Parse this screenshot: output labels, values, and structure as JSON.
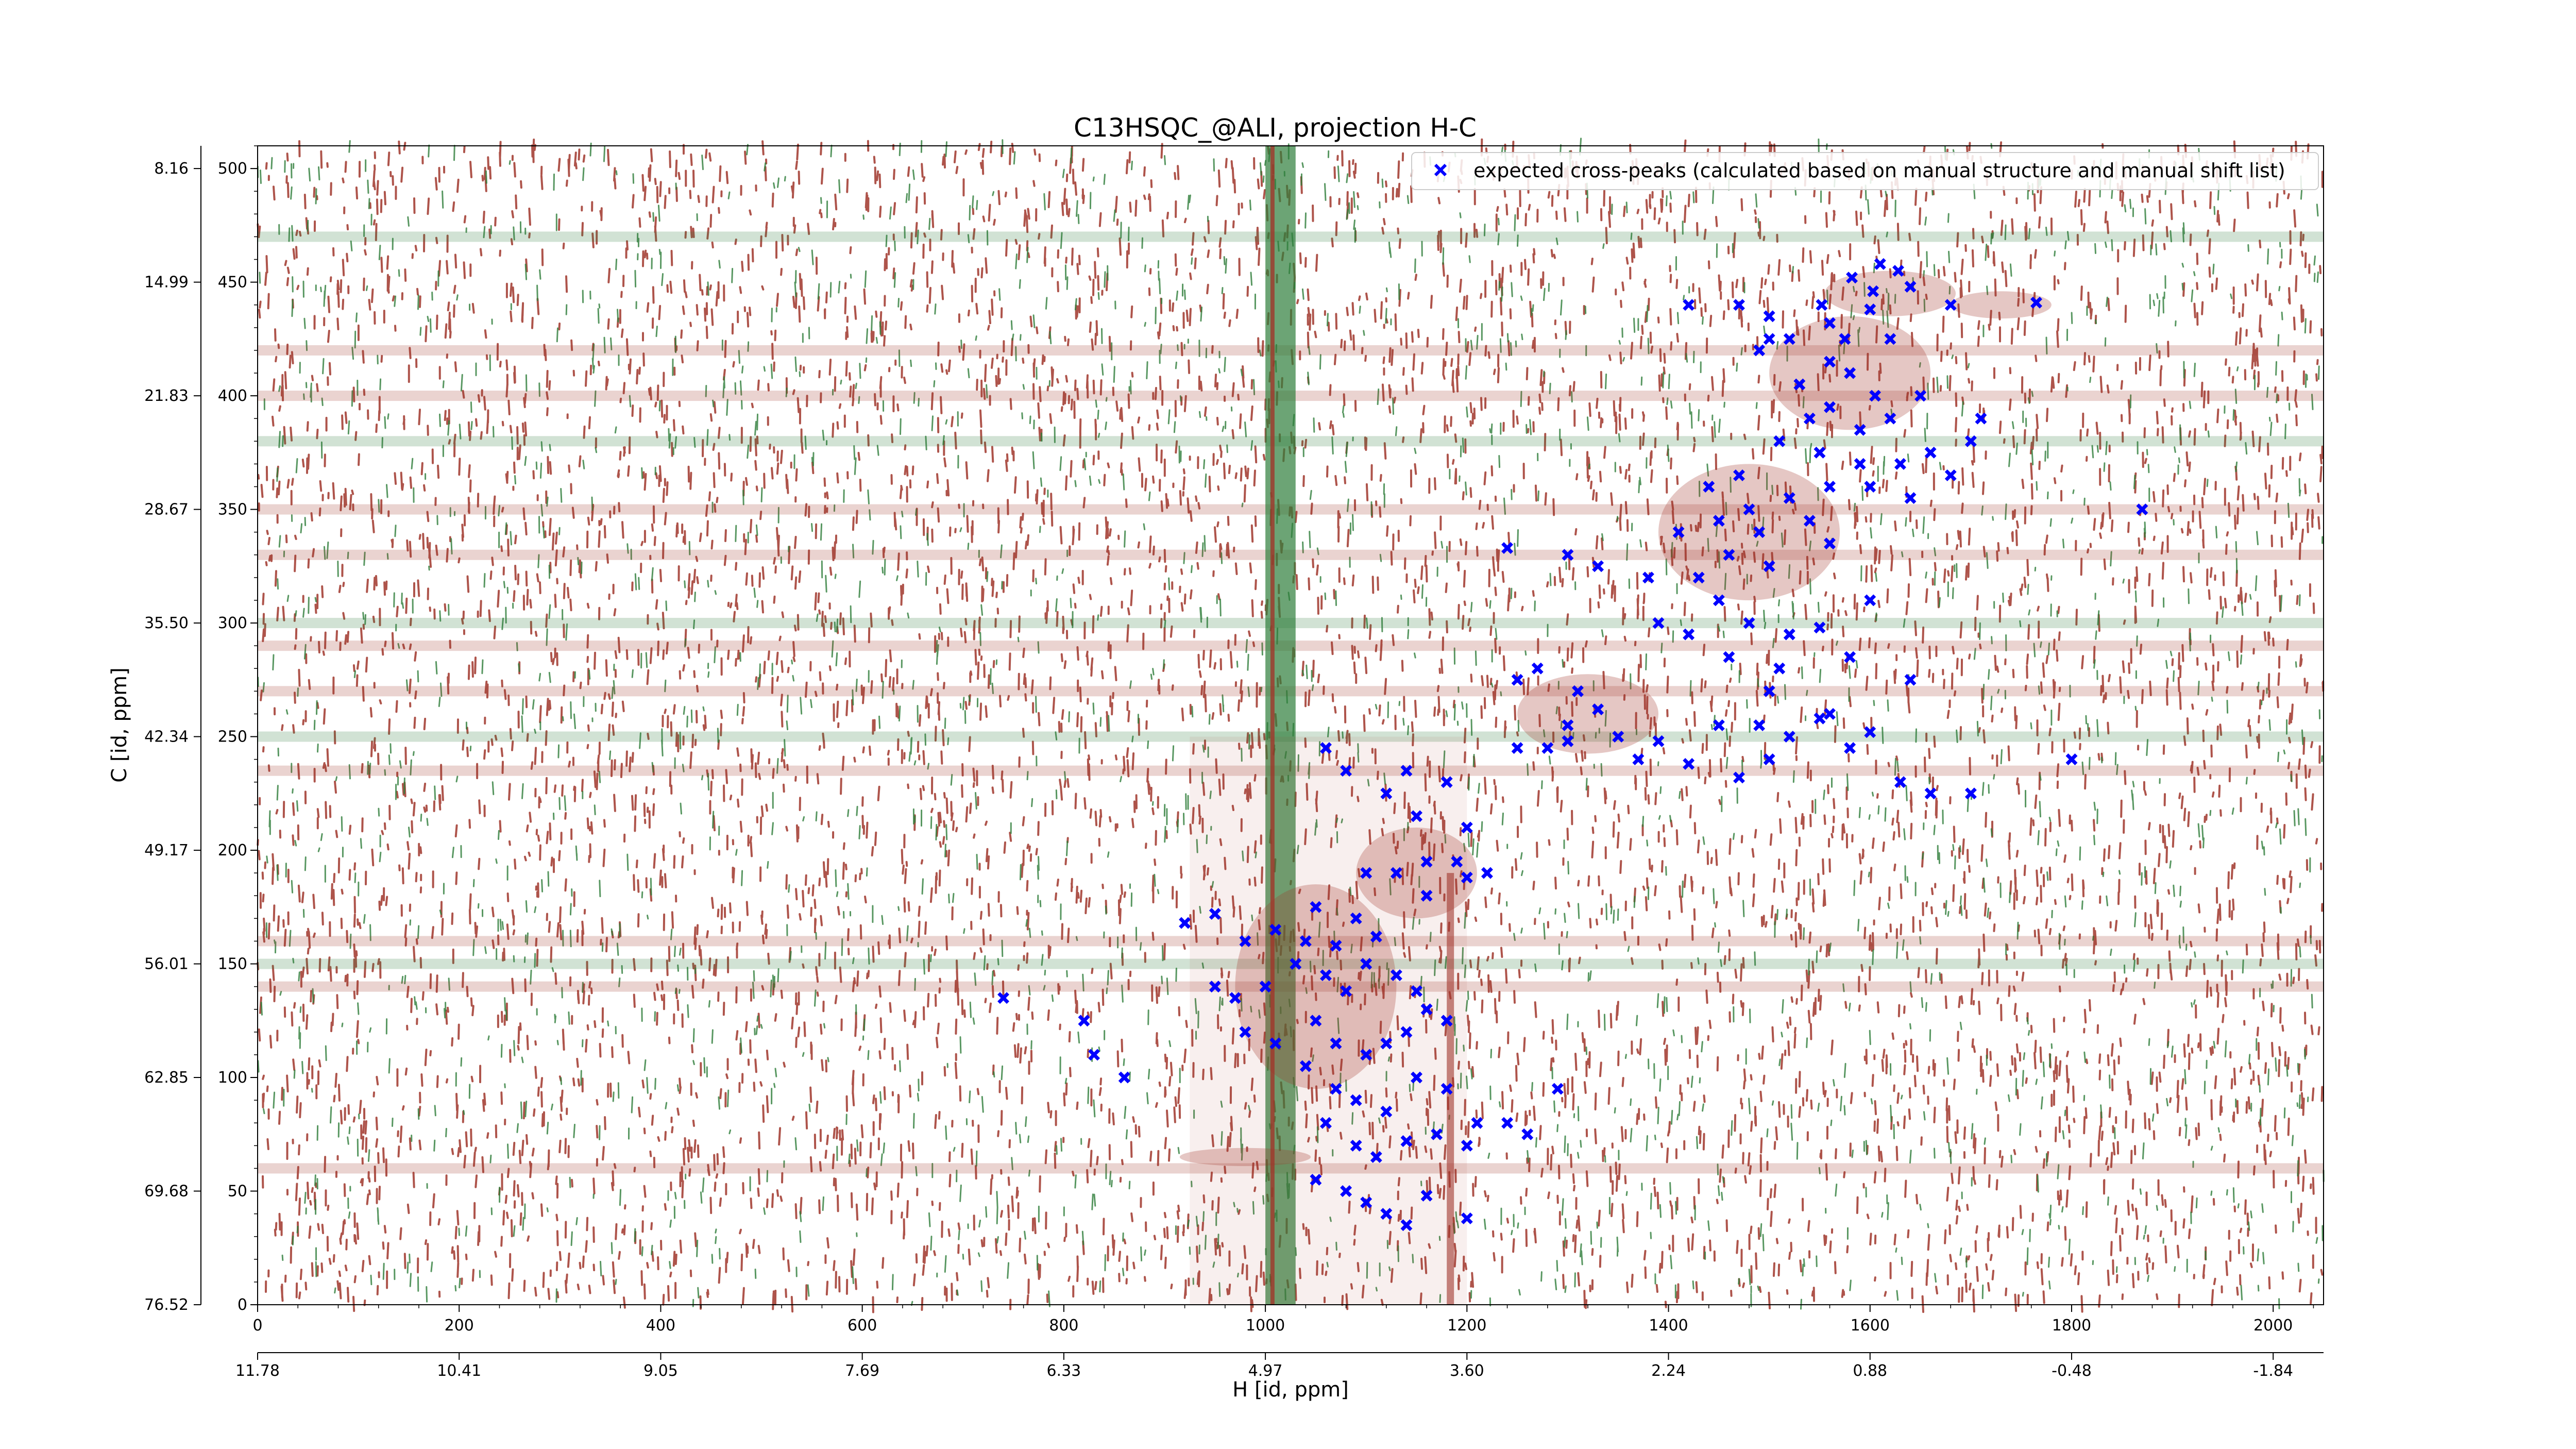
{
  "chart_data": {
    "type": "scatter",
    "title": "C13HSQC_@ALI, projection H-C",
    "xlabel": "H [id, ppm]",
    "ylabel": "C [id, ppm]",
    "xlim": [
      0,
      2050
    ],
    "ylim": [
      0,
      510
    ],
    "x_ticks": [
      0,
      200,
      400,
      600,
      800,
      1000,
      1200,
      1400,
      1600,
      1800,
      2000
    ],
    "y_ticks": [
      0,
      50,
      100,
      150,
      200,
      250,
      300,
      350,
      400,
      450,
      500
    ],
    "x_ppm_ticks": [
      "11.78",
      "10.41",
      "9.05",
      "7.69",
      "6.33",
      "4.97",
      "3.60",
      "2.24",
      "0.88",
      "-0.48",
      "-1.84"
    ],
    "y_ppm_ticks": [
      "76.52",
      "69.68",
      "62.85",
      "56.01",
      "49.17",
      "42.34",
      "35.50",
      "28.67",
      "21.83",
      "14.99",
      "8.16"
    ],
    "grid": false,
    "legend_position": "top-right",
    "colors": {
      "positive_contour": "#a0362b",
      "negative_contour": "#2e7d3a",
      "marker": "#0000ff"
    },
    "series": [
      {
        "name": "expected cross-peaks (calculated based on manual structure and manual shift list)",
        "marker": "x",
        "points": [
          [
            1610,
            458
          ],
          [
            1628,
            455
          ],
          [
            1582,
            452
          ],
          [
            1603,
            446
          ],
          [
            1640,
            448
          ],
          [
            1552,
            440
          ],
          [
            1470,
            440
          ],
          [
            1420,
            440
          ],
          [
            1500,
            435
          ],
          [
            1560,
            432
          ],
          [
            1600,
            438
          ],
          [
            1765,
            441
          ],
          [
            1680,
            440
          ],
          [
            1575,
            425
          ],
          [
            1620,
            425
          ],
          [
            1520,
            425
          ],
          [
            1490,
            420
          ],
          [
            1560,
            415
          ],
          [
            1580,
            410
          ],
          [
            1530,
            405
          ],
          [
            1605,
            400
          ],
          [
            1650,
            400
          ],
          [
            1560,
            395
          ],
          [
            1540,
            390
          ],
          [
            1590,
            385
          ],
          [
            1620,
            390
          ],
          [
            1710,
            390
          ],
          [
            1700,
            380
          ],
          [
            1510,
            380
          ],
          [
            1550,
            375
          ],
          [
            1590,
            370
          ],
          [
            1630,
            370
          ],
          [
            1660,
            375
          ],
          [
            1680,
            365
          ],
          [
            1560,
            360
          ],
          [
            1600,
            360
          ],
          [
            1640,
            355
          ],
          [
            1470,
            365
          ],
          [
            1440,
            360
          ],
          [
            1480,
            350
          ],
          [
            1520,
            355
          ],
          [
            1450,
            345
          ],
          [
            1410,
            340
          ],
          [
            1490,
            340
          ],
          [
            1540,
            345
          ],
          [
            1560,
            335
          ],
          [
            1460,
            330
          ],
          [
            1500,
            325
          ],
          [
            1430,
            320
          ],
          [
            1380,
            320
          ],
          [
            1330,
            325
          ],
          [
            1300,
            330
          ],
          [
            1240,
            333
          ],
          [
            1450,
            310
          ],
          [
            1480,
            300
          ],
          [
            1520,
            295
          ],
          [
            1550,
            298
          ],
          [
            1600,
            310
          ],
          [
            1420,
            295
          ],
          [
            1390,
            300
          ],
          [
            1460,
            285
          ],
          [
            1510,
            280
          ],
          [
            1580,
            285
          ],
          [
            1500,
            270
          ],
          [
            1640,
            275
          ],
          [
            1250,
            275
          ],
          [
            1270,
            280
          ],
          [
            1310,
            270
          ],
          [
            1330,
            262
          ],
          [
            1300,
            255
          ],
          [
            1350,
            250
          ],
          [
            1280,
            245
          ],
          [
            1250,
            245
          ],
          [
            1390,
            248
          ],
          [
            1450,
            255
          ],
          [
            1490,
            255
          ],
          [
            1520,
            250
          ],
          [
            1550,
            258
          ],
          [
            1600,
            252
          ],
          [
            1580,
            245
          ],
          [
            1500,
            240
          ],
          [
            1470,
            232
          ],
          [
            1420,
            238
          ],
          [
            1370,
            240
          ],
          [
            1300,
            248
          ],
          [
            1060,
            245
          ],
          [
            1080,
            235
          ],
          [
            1140,
            235
          ],
          [
            1180,
            230
          ],
          [
            1120,
            225
          ],
          [
            1150,
            215
          ],
          [
            1200,
            210
          ],
          [
            1190,
            195
          ],
          [
            1160,
            195
          ],
          [
            1130,
            190
          ],
          [
            1100,
            190
          ],
          [
            1160,
            180
          ],
          [
            1200,
            188
          ],
          [
            1220,
            190
          ],
          [
            1050,
            175
          ],
          [
            1090,
            170
          ],
          [
            1110,
            162
          ],
          [
            1070,
            158
          ],
          [
            1040,
            160
          ],
          [
            1010,
            165
          ],
          [
            950,
            172
          ],
          [
            920,
            168
          ],
          [
            980,
            160
          ],
          [
            1030,
            150
          ],
          [
            1060,
            145
          ],
          [
            1080,
            138
          ],
          [
            1100,
            150
          ],
          [
            1130,
            145
          ],
          [
            1150,
            138
          ],
          [
            1000,
            140
          ],
          [
            970,
            135
          ],
          [
            950,
            140
          ],
          [
            1050,
            125
          ],
          [
            1070,
            115
          ],
          [
            1100,
            110
          ],
          [
            1120,
            115
          ],
          [
            1140,
            120
          ],
          [
            1160,
            130
          ],
          [
            1180,
            125
          ],
          [
            980,
            120
          ],
          [
            1010,
            115
          ],
          [
            1040,
            105
          ],
          [
            1070,
            95
          ],
          [
            1090,
            90
          ],
          [
            1120,
            85
          ],
          [
            1150,
            100
          ],
          [
            1180,
            95
          ],
          [
            1210,
            80
          ],
          [
            1240,
            80
          ],
          [
            1060,
            80
          ],
          [
            1090,
            70
          ],
          [
            1110,
            65
          ],
          [
            1140,
            72
          ],
          [
            1170,
            75
          ],
          [
            1200,
            70
          ],
          [
            1260,
            75
          ],
          [
            1290,
            95
          ],
          [
            1050,
            55
          ],
          [
            1080,
            50
          ],
          [
            1100,
            45
          ],
          [
            1120,
            40
          ],
          [
            1140,
            35
          ],
          [
            1160,
            48
          ],
          [
            1200,
            38
          ],
          [
            860,
            100
          ],
          [
            830,
            110
          ],
          [
            820,
            125
          ],
          [
            740,
            135
          ],
          [
            1660,
            225
          ],
          [
            1700,
            225
          ],
          [
            1630,
            230
          ],
          [
            1800,
            240
          ],
          [
            1870,
            350
          ],
          [
            1500,
            425
          ],
          [
            1560,
            260
          ]
        ]
      }
    ]
  }
}
